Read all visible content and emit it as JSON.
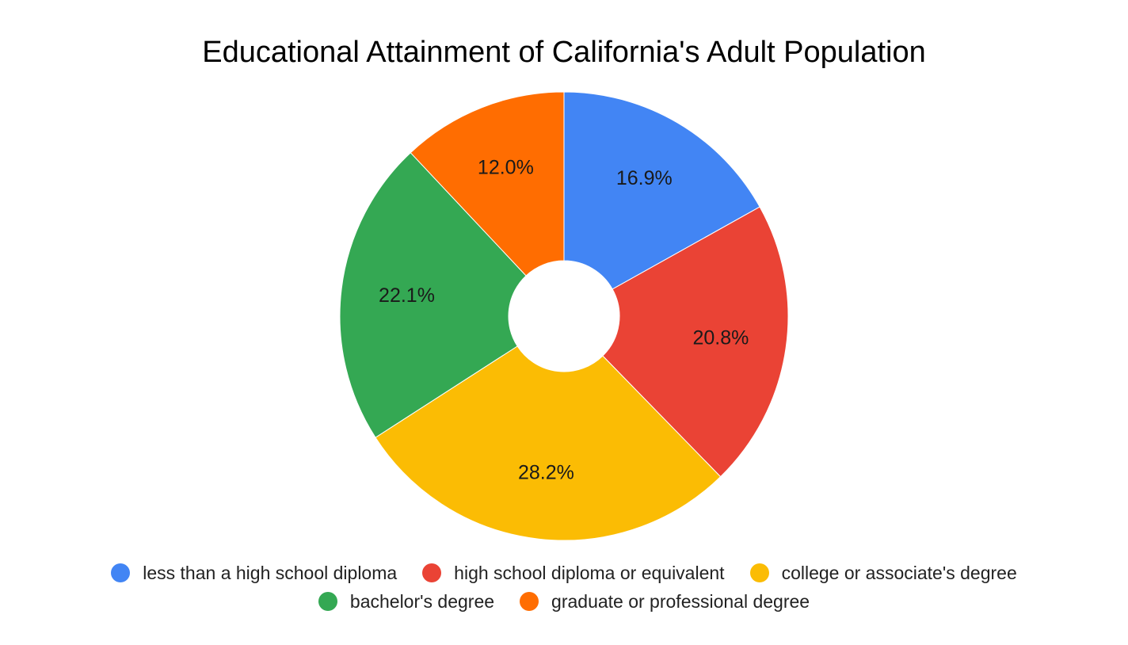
{
  "chart_data": {
    "type": "pie",
    "title": "Educational Attainment of California's Adult Population",
    "donut": true,
    "legend_position": "bottom",
    "slices": [
      {
        "label": "less than a high school diploma",
        "value": 16.9,
        "display": "16.9%",
        "color": "#4285F4"
      },
      {
        "label": "high school diploma or equivalent",
        "value": 20.8,
        "display": "20.8%",
        "color": "#EA4335"
      },
      {
        "label": "college or associate's degree",
        "value": 28.2,
        "display": "28.2%",
        "color": "#FBBC04"
      },
      {
        "label": "bachelor's degree",
        "value": 22.1,
        "display": "22.1%",
        "color": "#34A853"
      },
      {
        "label": "graduate or professional degree",
        "value": 12.0,
        "display": "12.0%",
        "color": "#FF6D01"
      }
    ]
  }
}
